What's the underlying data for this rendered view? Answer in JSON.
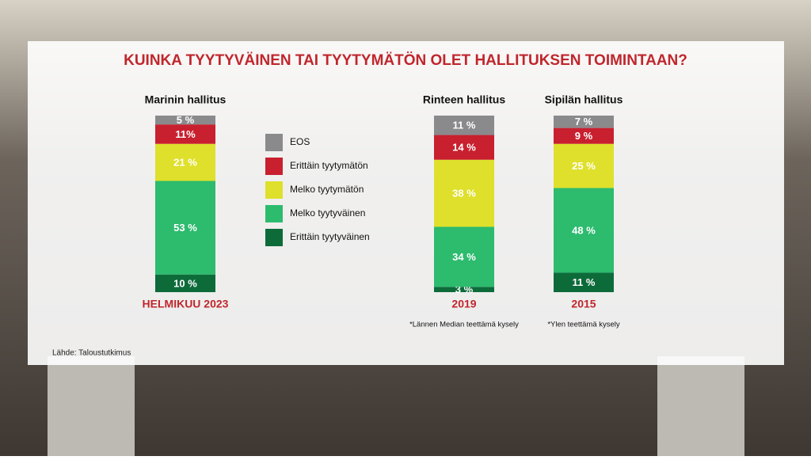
{
  "chart_data": {
    "type": "stacked_bar",
    "title": "KUINKA TYYTYVÄINEN TAI TYYTYMÄTÖN OLET HALLITUKSEN TOIMINTAAN?",
    "categories": [
      "Marinin hallitus",
      "Rinteen hallitus",
      "Sipilän hallitus"
    ],
    "periods": [
      "HELMIKUU 2023",
      "2019",
      "2015"
    ],
    "notes": [
      null,
      "*Lännen Median teettämä kysely",
      "*Ylen teettämä kysely"
    ],
    "source": "Lähde: Taloustutkimus",
    "ylim": [
      0,
      100
    ],
    "series": [
      {
        "name": "EOS",
        "color": "#8a8a8c",
        "values": [
          5,
          11,
          7
        ],
        "value_labels": [
          "5 %",
          "11 %",
          "7 %"
        ]
      },
      {
        "name": "Erittäin tyytymätön",
        "color": "#c8202f",
        "values": [
          11,
          14,
          9
        ],
        "value_labels": [
          "11%",
          "14 %",
          "9 %"
        ]
      },
      {
        "name": "Melko tyytymätön",
        "color": "#dfe02b",
        "values": [
          21,
          38,
          25
        ],
        "value_labels": [
          "21 %",
          "38 %",
          "25 %"
        ]
      },
      {
        "name": "Melko tyytyväinen",
        "color": "#2dbb6e",
        "values": [
          53,
          34,
          48
        ],
        "value_labels": [
          "53 %",
          "34 %",
          "48 %"
        ]
      },
      {
        "name": "Erittäin tyytyväinen",
        "color": "#0d6b3a",
        "values": [
          10,
          3,
          11
        ],
        "value_labels": [
          "10 %",
          "3 %",
          "11 %"
        ]
      }
    ]
  }
}
